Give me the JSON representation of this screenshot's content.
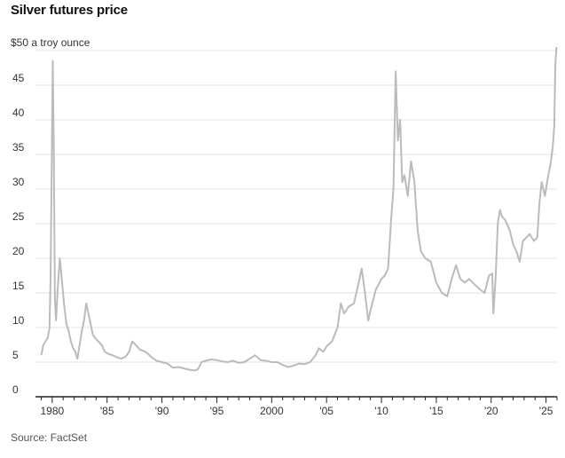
{
  "chart_data": {
    "type": "line",
    "title": "Silver futures price",
    "unit_label": "$50 a troy ounce",
    "source": "Source: FactSet",
    "xlabel": "",
    "ylabel": "",
    "ylim": [
      0,
      50
    ],
    "xlim": [
      1978.8,
      2026.0
    ],
    "y_ticks": [
      0,
      5,
      10,
      15,
      20,
      25,
      30,
      35,
      40,
      45,
      50
    ],
    "y_tick_labels": [
      "0",
      "5",
      "10",
      "15",
      "20",
      "25",
      "30",
      "35",
      "40",
      "45",
      ""
    ],
    "x_ticks": [
      1980,
      1985,
      1990,
      1995,
      2000,
      2005,
      2010,
      2015,
      2020,
      2025
    ],
    "x_tick_labels": [
      "1980",
      "'85",
      "'90",
      "'95",
      "2000",
      "'05",
      "'10",
      "'15",
      "'20",
      "'25"
    ],
    "grid": true,
    "line_color": "#bbbbbb",
    "series": [
      {
        "x": [
          1979.0,
          1979.2,
          1979.4,
          1979.6,
          1979.75,
          1979.85,
          1979.95,
          1980.05,
          1980.15,
          1980.25,
          1980.35,
          1980.5,
          1980.7,
          1980.9,
          1981.1,
          1981.3,
          1981.5,
          1981.7,
          1981.9,
          1982.1,
          1982.3,
          1982.5,
          1982.7,
          1982.9,
          1983.1,
          1983.3,
          1983.5,
          1983.7,
          1983.9,
          1984.2,
          1984.5,
          1984.8,
          1985.1,
          1985.5,
          1985.9,
          1986.3,
          1986.7,
          1987.0,
          1987.3,
          1987.6,
          1988.0,
          1988.5,
          1989.0,
          1989.5,
          1990.0,
          1990.5,
          1991.0,
          1991.5,
          1992.0,
          1992.5,
          1993.0,
          1993.3,
          1993.6,
          1994.0,
          1994.5,
          1995.0,
          1995.5,
          1996.0,
          1996.5,
          1997.0,
          1997.5,
          1998.0,
          1998.5,
          1999.0,
          1999.5,
          2000.0,
          2000.5,
          2001.0,
          2001.5,
          2002.0,
          2002.5,
          2003.0,
          2003.5,
          2004.0,
          2004.3,
          2004.7,
          2005.0,
          2005.5,
          2006.0,
          2006.3,
          2006.6,
          2007.0,
          2007.5,
          2008.0,
          2008.2,
          2008.5,
          2008.8,
          2009.0,
          2009.5,
          2010.0,
          2010.3,
          2010.6,
          2010.9,
          2011.1,
          2011.3,
          2011.5,
          2011.7,
          2011.9,
          2012.1,
          2012.4,
          2012.7,
          2013.0,
          2013.3,
          2013.6,
          2014.0,
          2014.5,
          2015.0,
          2015.5,
          2016.0,
          2016.4,
          2016.8,
          2017.2,
          2017.6,
          2018.0,
          2018.5,
          2019.0,
          2019.4,
          2019.8,
          2020.1,
          2020.2,
          2020.4,
          2020.6,
          2020.8,
          2021.0,
          2021.3,
          2021.7,
          2022.0,
          2022.3,
          2022.6,
          2022.9,
          2023.2,
          2023.5,
          2023.9,
          2024.2,
          2024.4,
          2024.6,
          2024.9,
          2025.2,
          2025.4,
          2025.6,
          2025.75,
          2025.85,
          2025.95
        ],
        "y": [
          6.0,
          7.5,
          8.0,
          8.5,
          10.0,
          17.0,
          32.0,
          48.5,
          35.0,
          14.0,
          11.0,
          15.5,
          20.0,
          16.5,
          13.0,
          10.5,
          9.5,
          8.0,
          7.0,
          6.5,
          5.5,
          7.5,
          9.5,
          11.0,
          13.5,
          12.0,
          10.5,
          9.0,
          8.5,
          8.0,
          7.5,
          6.5,
          6.2,
          6.0,
          5.7,
          5.5,
          5.8,
          6.5,
          8.0,
          7.5,
          6.8,
          6.5,
          5.8,
          5.2,
          5.0,
          4.8,
          4.2,
          4.3,
          4.1,
          3.9,
          3.8,
          4.0,
          5.0,
          5.2,
          5.4,
          5.3,
          5.1,
          5.0,
          5.2,
          4.9,
          5.0,
          5.5,
          6.0,
          5.3,
          5.2,
          5.0,
          5.0,
          4.6,
          4.3,
          4.5,
          4.8,
          4.7,
          5.0,
          6.0,
          7.0,
          6.5,
          7.3,
          8.0,
          10.0,
          13.5,
          12.0,
          13.0,
          13.5,
          17.0,
          18.5,
          15.0,
          11.0,
          12.5,
          15.5,
          17.0,
          17.5,
          18.5,
          26.0,
          30.0,
          47.0,
          37.0,
          40.0,
          31.0,
          32.0,
          29.0,
          34.0,
          31.0,
          24.0,
          21.0,
          20.0,
          19.5,
          16.5,
          15.0,
          14.5,
          17.0,
          19.0,
          17.0,
          16.5,
          17.0,
          16.2,
          15.5,
          15.0,
          17.5,
          17.8,
          12.0,
          17.0,
          25.0,
          27.0,
          26.0,
          25.5,
          24.0,
          22.0,
          21.0,
          19.5,
          22.5,
          23.0,
          23.5,
          22.5,
          23.0,
          28.0,
          31.0,
          29.0,
          32.0,
          33.5,
          36.0,
          39.0,
          48.0,
          50.5
        ]
      }
    ]
  }
}
